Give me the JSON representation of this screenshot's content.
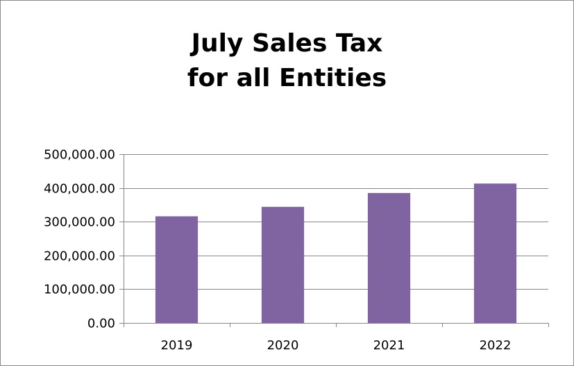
{
  "chart_data": {
    "type": "bar",
    "title_lines": [
      "July Sales Tax",
      "for all Entities"
    ],
    "xlabel": "",
    "ylabel": "",
    "categories": [
      "2019",
      "2020",
      "2021",
      "2022"
    ],
    "values": [
      316000,
      344000,
      385000,
      413000
    ],
    "ylim": [
      0,
      500000
    ],
    "yticks": [
      0,
      100000,
      200000,
      300000,
      400000,
      500000
    ],
    "ytick_labels": [
      "0.00",
      "100,000.00",
      "200,000.00",
      "300,000.00",
      "400,000.00",
      "500,000.00"
    ],
    "grid": true,
    "legend": "none",
    "bar_color": "#8064a2",
    "grid_color": "#868686"
  }
}
